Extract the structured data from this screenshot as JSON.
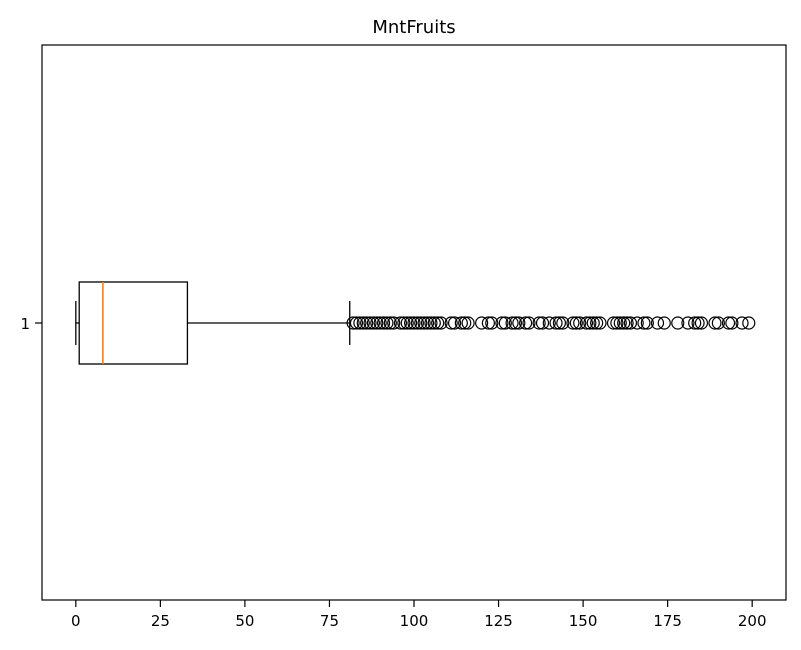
{
  "chart_data": {
    "type": "boxplot",
    "title": "MntFruits",
    "orientation": "horizontal",
    "xlim": [
      -10,
      210
    ],
    "xticks": [
      0,
      25,
      50,
      75,
      100,
      125,
      150,
      175,
      200
    ],
    "y_categories": [
      "1"
    ],
    "colors": {
      "box": "#000000",
      "median": "#ff7f0e",
      "outlier": "#000000",
      "axes": "#000000",
      "background": "#ffffff"
    },
    "series": [
      {
        "label": "1",
        "whisker_low": 0,
        "q1": 1,
        "median": 8,
        "q3": 33,
        "whisker_high": 81,
        "outliers": [
          82,
          83,
          84,
          85,
          86,
          87,
          88,
          89,
          90,
          91,
          92,
          93,
          94,
          96,
          97,
          98,
          99,
          100,
          101,
          102,
          103,
          104,
          105,
          106,
          107,
          108,
          111,
          112,
          114,
          115,
          116,
          120,
          122,
          123,
          126,
          127,
          129,
          130,
          131,
          133,
          134,
          137,
          138,
          140,
          142,
          143,
          144,
          147,
          148,
          149,
          151,
          152,
          153,
          154,
          155,
          159,
          160,
          161,
          162,
          163,
          164,
          166,
          168,
          169,
          172,
          174,
          178,
          181,
          183,
          184,
          185,
          189,
          190,
          193,
          194,
          197,
          199
        ]
      }
    ]
  }
}
